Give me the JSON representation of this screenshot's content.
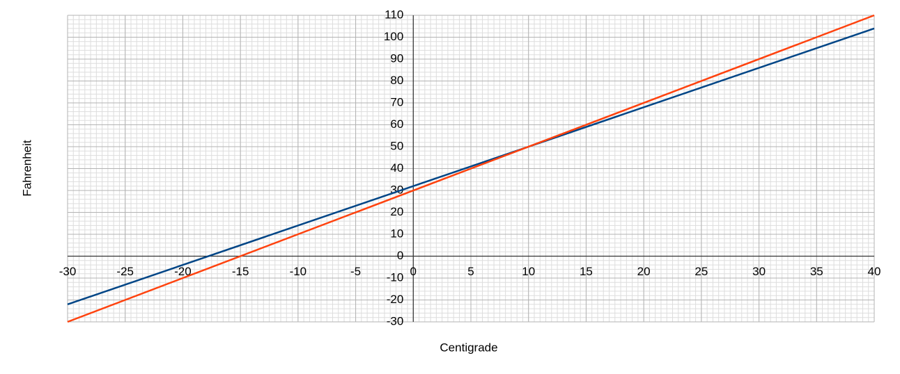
{
  "chart_data": {
    "type": "line",
    "x_label": "Centigrade",
    "y_label": "Fahrenheit",
    "x": [
      -30,
      40
    ],
    "series": [
      {
        "color": "#004586",
        "values": [
          -22,
          104
        ]
      },
      {
        "color": "#ff420e",
        "values": [
          -30,
          110
        ]
      }
    ],
    "xlim": [
      -30,
      40
    ],
    "xticks": [
      -30,
      -25,
      -20,
      -15,
      -10,
      -5,
      0,
      5,
      10,
      15,
      20,
      25,
      30,
      35,
      40
    ],
    "ylim": [
      -30,
      110
    ],
    "yticks": [
      -30,
      -20,
      -10,
      0,
      10,
      20,
      30,
      40,
      50,
      60,
      70,
      80,
      90,
      100,
      110
    ],
    "grid": true,
    "x_minor_step": 0.5,
    "y_minor_step": 2
  }
}
